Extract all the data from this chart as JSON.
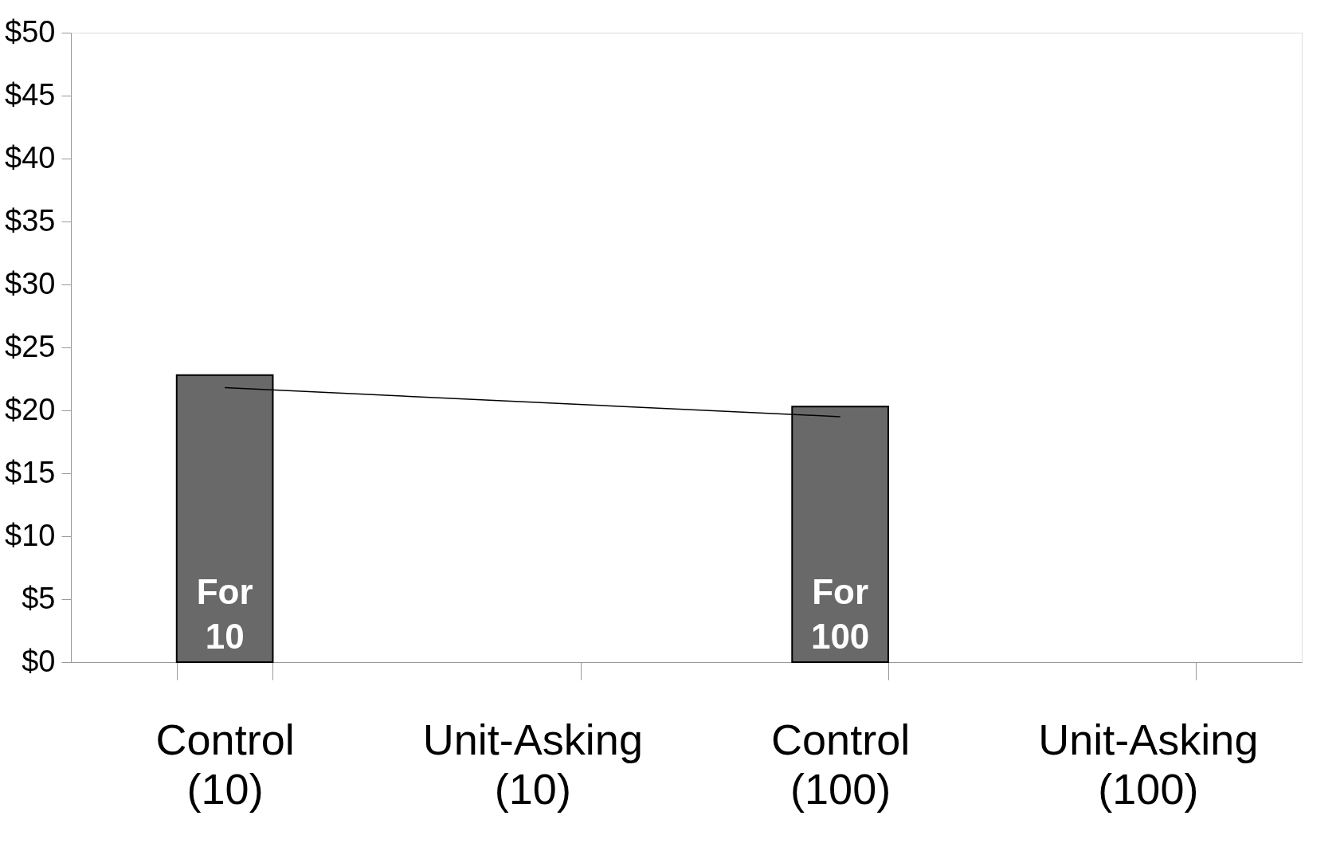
{
  "chart_data": {
    "type": "bar",
    "categories": [
      "Control\n(10)",
      "Unit-Asking\n(10)",
      "Control\n(100)",
      "Unit-Asking\n(100)"
    ],
    "series": [
      {
        "color": "#696969",
        "values": [
          22.8,
          null,
          20.3,
          null
        ]
      },
      {
        "type": "line",
        "color": "#000000",
        "values": [
          21.8,
          null,
          19.5,
          null
        ]
      }
    ],
    "ylim": [
      0,
      50
    ],
    "yticks": [
      {
        "value": 0,
        "label": "$0"
      },
      {
        "value": 5,
        "label": "$5"
      },
      {
        "value": 10,
        "label": "$10"
      },
      {
        "value": 15,
        "label": "$15"
      },
      {
        "value": 20,
        "label": "$20"
      },
      {
        "value": 25,
        "label": "$25"
      },
      {
        "value": 30,
        "label": "$30"
      },
      {
        "value": 35,
        "label": "$35"
      },
      {
        "value": 40,
        "label": "$40"
      },
      {
        "value": 45,
        "label": "$45"
      },
      {
        "value": 50,
        "label": "$50"
      }
    ],
    "annotations": [
      "For\n10",
      "For\n100"
    ],
    "grid": false
  }
}
